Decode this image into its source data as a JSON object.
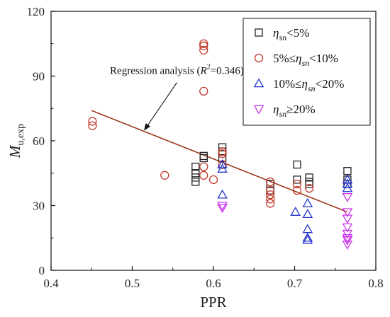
{
  "chart_data": {
    "type": "scatter",
    "xlabel": "PPR",
    "ylabel": "M",
    "ylabel_sub": "u,exp",
    "xlim": [
      0.4,
      0.8
    ],
    "ylim": [
      0,
      120
    ],
    "xticks": [
      "0.4",
      "0.5",
      "0.6",
      "0.7",
      "0.8"
    ],
    "yticks": [
      "0",
      "30",
      "60",
      "90",
      "120"
    ],
    "grid": false,
    "legend_position": "top-right",
    "series": [
      {
        "name": "η_sn<5%",
        "label_parts": {
          "eta": "η",
          "sub": "sn",
          "tail": "<5%"
        },
        "marker": "square",
        "color": "#222222",
        "points": [
          [
            0.578,
            48
          ],
          [
            0.578,
            45
          ],
          [
            0.578,
            43
          ],
          [
            0.578,
            41
          ],
          [
            0.588,
            53
          ],
          [
            0.588,
            52
          ],
          [
            0.611,
            57
          ],
          [
            0.611,
            55
          ],
          [
            0.611,
            52
          ],
          [
            0.67,
            40
          ],
          [
            0.67,
            37
          ],
          [
            0.703,
            49
          ],
          [
            0.703,
            42
          ],
          [
            0.718,
            43
          ],
          [
            0.718,
            41
          ],
          [
            0.718,
            40
          ],
          [
            0.765,
            46
          ],
          [
            0.765,
            42
          ],
          [
            0.765,
            40
          ]
        ]
      },
      {
        "name": "5%≤η_sn<10%",
        "label_parts": {
          "pre": "5%≤",
          "eta": "η",
          "sub": "sn",
          "tail": "<10%"
        },
        "marker": "circle",
        "color": "#c0392b",
        "points": [
          [
            0.451,
            69
          ],
          [
            0.451,
            67
          ],
          [
            0.54,
            44
          ],
          [
            0.588,
            105
          ],
          [
            0.588,
            104
          ],
          [
            0.588,
            102
          ],
          [
            0.588,
            83
          ],
          [
            0.588,
            48
          ],
          [
            0.588,
            44
          ],
          [
            0.6,
            42
          ],
          [
            0.611,
            55
          ],
          [
            0.611,
            54
          ],
          [
            0.611,
            49
          ],
          [
            0.67,
            41
          ],
          [
            0.67,
            37
          ],
          [
            0.67,
            35
          ],
          [
            0.67,
            33
          ],
          [
            0.67,
            31
          ],
          [
            0.703,
            40
          ],
          [
            0.703,
            37
          ],
          [
            0.718,
            38
          ]
        ]
      },
      {
        "name": "10%≤η_sn<20%",
        "label_parts": {
          "pre": "10%≤",
          "eta": "η",
          "sub": "sn",
          "tail": "<20%"
        },
        "marker": "triangle-up",
        "color": "#2233cc",
        "points": [
          [
            0.611,
            49
          ],
          [
            0.611,
            47
          ],
          [
            0.611,
            35
          ],
          [
            0.701,
            27
          ],
          [
            0.716,
            31
          ],
          [
            0.716,
            26
          ],
          [
            0.716,
            19
          ],
          [
            0.716,
            15
          ],
          [
            0.716,
            14
          ],
          [
            0.765,
            42
          ],
          [
            0.765,
            40
          ],
          [
            0.765,
            38
          ]
        ]
      },
      {
        "name": "η_sn≥20%",
        "label_parts": {
          "eta": "η",
          "sub": "sn",
          "tail": "≥20%"
        },
        "marker": "triangle-down",
        "color": "#cc33ee",
        "points": [
          [
            0.611,
            30
          ],
          [
            0.611,
            29
          ],
          [
            0.765,
            34
          ],
          [
            0.765,
            27
          ],
          [
            0.765,
            24
          ],
          [
            0.765,
            20
          ],
          [
            0.765,
            17
          ],
          [
            0.765,
            15
          ],
          [
            0.765,
            14
          ],
          [
            0.765,
            12
          ]
        ]
      }
    ],
    "regression": {
      "from": [
        0.45,
        74
      ],
      "to": [
        0.765,
        27
      ],
      "color": "#a0381e"
    },
    "annotation": {
      "prefix": "Regression analysis (",
      "r": "R",
      "sup": "2",
      "suffix": "=0.346)",
      "text_at": [
        0.555,
        91
      ],
      "arrow_from": [
        0.555,
        87
      ],
      "arrow_to": [
        0.515,
        65
      ]
    }
  }
}
